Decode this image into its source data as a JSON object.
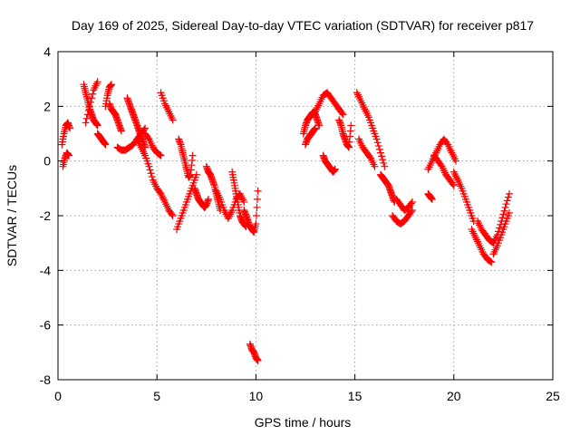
{
  "chart_data": {
    "type": "scatter",
    "title": "Day 169 of 2025, Sidereal Day-to-day VTEC variation (SDTVAR) for receiver p817",
    "xlabel": "GPS time / hours",
    "ylabel": "SDTVAR / TECUs",
    "xlim": [
      0,
      25
    ],
    "ylim": [
      -8,
      4
    ],
    "xticks": [
      0,
      5,
      10,
      15,
      20,
      25
    ],
    "yticks": [
      -8,
      -6,
      -4,
      -2,
      0,
      2,
      4
    ],
    "grid": true,
    "marker": "+",
    "color": "#ff0000",
    "series": [
      {
        "name": "SDTVAR",
        "segments": [
          {
            "x": [
              0.2,
              0.3,
              0.4,
              0.5,
              0.6
            ],
            "y": [
              0.6,
              1.0,
              1.3,
              1.4,
              1.2
            ]
          },
          {
            "x": [
              0.25,
              0.35,
              0.45,
              0.55
            ],
            "y": [
              -0.2,
              0.1,
              0.3,
              0.2
            ]
          },
          {
            "x": [
              1.3,
              1.4,
              1.5,
              1.6,
              1.7,
              1.8,
              1.9,
              2.0
            ],
            "y": [
              2.8,
              2.5,
              2.2,
              1.9,
              1.7,
              1.5,
              1.4,
              1.3
            ]
          },
          {
            "x": [
              1.4,
              1.6,
              1.8,
              2.0
            ],
            "y": [
              1.4,
              2.0,
              2.6,
              2.9
            ]
          },
          {
            "x": [
              2.0,
              2.1,
              2.2,
              2.3,
              2.4
            ],
            "y": [
              1.0,
              0.9,
              0.8,
              0.7,
              0.6
            ]
          },
          {
            "x": [
              2.4,
              2.5,
              2.6,
              2.7
            ],
            "y": [
              2.0,
              2.4,
              2.7,
              2.8
            ]
          },
          {
            "x": [
              2.6,
              2.7,
              2.8,
              2.9,
              3.0,
              3.1,
              3.2
            ],
            "y": [
              2.1,
              1.9,
              1.8,
              1.7,
              1.5,
              1.3,
              1.1
            ]
          },
          {
            "x": [
              3.0,
              3.2,
              3.4,
              3.6,
              3.8,
              4.0,
              4.2,
              4.4
            ],
            "y": [
              0.5,
              0.4,
              0.4,
              0.5,
              0.6,
              0.8,
              1.0,
              1.2
            ]
          },
          {
            "x": [
              3.5,
              3.6,
              3.7,
              3.8,
              3.9,
              4.0,
              4.1,
              4.2,
              4.3,
              4.4
            ],
            "y": [
              2.3,
              2.1,
              1.9,
              1.7,
              1.5,
              1.3,
              1.1,
              0.9,
              0.7,
              0.5
            ]
          },
          {
            "x": [
              4.0,
              4.2,
              4.4,
              4.6,
              4.8,
              5.0,
              5.2,
              5.4,
              5.6,
              5.8
            ],
            "y": [
              0.8,
              0.5,
              0.2,
              -0.2,
              -0.7,
              -1.0,
              -1.2,
              -1.5,
              -1.8,
              -2.0
            ]
          },
          {
            "x": [
              4.4,
              4.6,
              4.8,
              5.0,
              5.2
            ],
            "y": [
              1.0,
              0.8,
              0.5,
              0.3,
              0.2
            ]
          },
          {
            "x": [
              5.2,
              5.4,
              5.6,
              5.8
            ],
            "y": [
              2.5,
              2.1,
              1.8,
              1.5
            ]
          },
          {
            "x": [
              6.0,
              6.2,
              6.4,
              6.6,
              6.8,
              7.0
            ],
            "y": [
              -2.5,
              -2.1,
              -1.7,
              -1.3,
              -0.9,
              -0.5
            ]
          },
          {
            "x": [
              6.1,
              6.2,
              6.3,
              6.4,
              6.5,
              6.6,
              6.7,
              6.8
            ],
            "y": [
              0.8,
              0.6,
              0.3,
              0.0,
              -0.3,
              -0.6,
              -0.5,
              0.2
            ]
          },
          {
            "x": [
              6.9,
              7.0,
              7.1,
              7.2,
              7.3,
              7.4,
              7.5,
              7.6
            ],
            "y": [
              -1.0,
              -1.2,
              -1.4,
              -1.5,
              -1.6,
              -1.7,
              -1.6,
              -1.4
            ]
          },
          {
            "x": [
              7.5,
              7.6,
              7.7,
              7.8,
              7.9,
              8.0,
              8.1,
              8.2
            ],
            "y": [
              -0.2,
              -0.4,
              -0.5,
              -0.7,
              -0.9,
              -1.2,
              -1.5,
              -1.8
            ]
          },
          {
            "x": [
              8.0,
              8.2,
              8.4,
              8.6,
              8.8,
              9.0,
              9.2,
              9.4
            ],
            "y": [
              -1.1,
              -1.4,
              -1.8,
              -2.1,
              -1.8,
              -1.4,
              -1.2,
              -1.5
            ]
          },
          {
            "x": [
              8.8,
              8.9,
              9.0,
              9.1,
              9.2,
              9.3,
              9.4,
              9.5
            ],
            "y": [
              -0.4,
              -0.8,
              -1.2,
              -1.6,
              -2.0,
              -2.2,
              -2.3,
              -2.4
            ]
          },
          {
            "x": [
              9.4,
              9.5,
              9.6,
              9.7,
              9.8,
              9.9,
              10.0,
              10.1
            ],
            "y": [
              -1.8,
              -2.0,
              -2.2,
              -2.4,
              -2.5,
              -2.6,
              -2.3,
              -1.1
            ]
          },
          {
            "x": [
              9.7,
              9.8,
              9.9,
              10.0,
              10.1
            ],
            "y": [
              -6.7,
              -6.9,
              -7.0,
              -7.2,
              -7.3
            ]
          },
          {
            "x": [
              12.4,
              12.5,
              12.6,
              12.7,
              12.8,
              12.9,
              13.0,
              13.1,
              13.2
            ],
            "y": [
              1.0,
              1.3,
              1.5,
              1.6,
              1.7,
              1.8,
              1.7,
              1.5,
              1.3
            ]
          },
          {
            "x": [
              12.5,
              12.6,
              12.7,
              12.8,
              12.9,
              13.0
            ],
            "y": [
              0.6,
              0.8,
              0.9,
              1.0,
              1.1,
              1.2
            ]
          },
          {
            "x": [
              13.0,
              13.2,
              13.4,
              13.6,
              13.8,
              14.0,
              14.2,
              14.4
            ],
            "y": [
              1.8,
              2.1,
              2.4,
              2.5,
              2.3,
              2.1,
              1.9,
              1.7
            ]
          },
          {
            "x": [
              13.4,
              13.5,
              13.6,
              13.7,
              13.8,
              13.9,
              14.0
            ],
            "y": [
              0.2,
              0.0,
              -0.1,
              -0.2,
              -0.3,
              -0.4,
              -0.3
            ]
          },
          {
            "x": [
              14.2,
              14.3,
              14.4,
              14.5,
              14.6,
              14.7,
              14.8
            ],
            "y": [
              1.5,
              1.3,
              1.0,
              0.8,
              0.6,
              0.5,
              1.3
            ]
          },
          {
            "x": [
              15.1,
              15.3,
              15.5,
              15.7,
              15.9,
              16.1,
              16.3,
              16.5
            ],
            "y": [
              2.5,
              2.2,
              1.9,
              1.6,
              1.2,
              0.8,
              0.3,
              -0.2
            ]
          },
          {
            "x": [
              15.2,
              15.4,
              15.6,
              15.8,
              16.0
            ],
            "y": [
              0.8,
              0.5,
              0.3,
              0.1,
              -0.2
            ]
          },
          {
            "x": [
              16.3,
              16.4,
              16.5,
              16.6,
              16.7,
              16.8,
              16.9,
              17.0
            ],
            "y": [
              -0.5,
              -0.6,
              -0.7,
              -0.8,
              -0.9,
              -1.1,
              -1.3,
              -1.5
            ]
          },
          {
            "x": [
              16.9,
              17.1,
              17.3,
              17.5,
              17.7,
              17.9
            ],
            "y": [
              -2.0,
              -2.2,
              -2.3,
              -2.2,
              -2.0,
              -1.8
            ]
          },
          {
            "x": [
              17.1,
              17.3,
              17.5,
              17.7,
              17.9
            ],
            "y": [
              -1.4,
              -1.6,
              -1.8,
              -1.7,
              -1.5
            ]
          },
          {
            "x": [
              18.7,
              18.8,
              18.9
            ],
            "y": [
              -1.2,
              -1.3,
              -1.4
            ]
          },
          {
            "x": [
              18.7,
              18.9,
              19.1,
              19.3,
              19.5,
              19.7,
              19.9,
              20.1
            ],
            "y": [
              -0.3,
              0.0,
              0.3,
              0.6,
              0.8,
              0.6,
              0.3,
              0.0
            ]
          },
          {
            "x": [
              19.0,
              19.2,
              19.4,
              19.6,
              19.8,
              20.0
            ],
            "y": [
              0.2,
              0.0,
              -0.2,
              -0.5,
              -0.7,
              -0.9
            ]
          },
          {
            "x": [
              20.0,
              20.2,
              20.4,
              20.6,
              20.8,
              21.0
            ],
            "y": [
              -0.4,
              -0.7,
              -1.0,
              -1.4,
              -1.8,
              -2.2
            ]
          },
          {
            "x": [
              20.9,
              21.1,
              21.3,
              21.5,
              21.7,
              21.9
            ],
            "y": [
              -2.5,
              -2.8,
              -3.1,
              -3.4,
              -3.6,
              -3.7
            ]
          },
          {
            "x": [
              21.2,
              21.4,
              21.6,
              21.8,
              22.0,
              22.2,
              22.4,
              22.6,
              22.8
            ],
            "y": [
              -2.2,
              -2.5,
              -2.7,
              -2.9,
              -3.0,
              -2.7,
              -2.2,
              -1.7,
              -1.2
            ]
          },
          {
            "x": [
              22.0,
              22.2,
              22.4,
              22.6,
              22.8
            ],
            "y": [
              -3.4,
              -3.1,
              -2.7,
              -2.3,
              -1.9
            ]
          }
        ]
      }
    ]
  }
}
